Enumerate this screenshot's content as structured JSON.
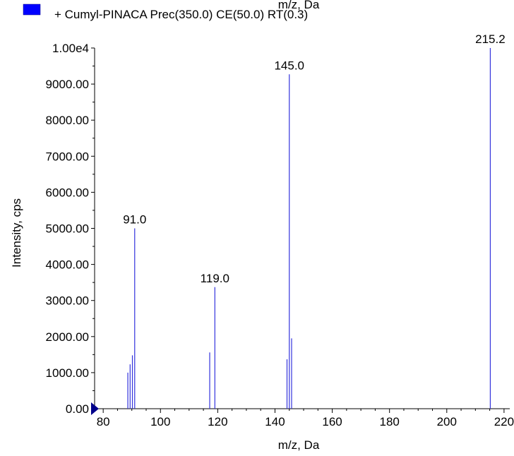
{
  "chart_data": {
    "type": "bar",
    "top_clipped_label": "m/z, Da",
    "legend": {
      "placement": "top-left",
      "items": [
        {
          "label": "+ Cumyl-PINACA Prec(350.0) CE(50.0) RT(0.3)",
          "color": "#0000ff"
        }
      ]
    },
    "xlabel": "m/z, Da",
    "ylabel": "Intensity, cps",
    "xlim": [
      77,
      222
    ],
    "ylim": [
      0,
      10000
    ],
    "x_ticks": [
      80,
      100,
      120,
      140,
      160,
      180,
      200,
      220
    ],
    "x_tick_labels": [
      "80",
      "100",
      "120",
      "140",
      "160",
      "180",
      "200",
      "220"
    ],
    "y_ticks": [
      0,
      1000,
      2000,
      3000,
      4000,
      5000,
      6000,
      7000,
      8000,
      9000,
      10000
    ],
    "y_tick_labels": [
      "0.00",
      "1000.00",
      "2000.00",
      "3000.00",
      "4000.00",
      "5000.00",
      "6000.00",
      "7000.00",
      "8000.00",
      "9000.00",
      "1.00e4"
    ],
    "peak_color": "#3333dd",
    "marker_color": "#00008b",
    "grid": false,
    "peaks": [
      {
        "x": 88.6,
        "y": 1000
      },
      {
        "x": 89.4,
        "y": 1230
      },
      {
        "x": 90.2,
        "y": 1480
      },
      {
        "x": 91.0,
        "y": 5000,
        "label": "91.0"
      },
      {
        "x": 117.2,
        "y": 1560
      },
      {
        "x": 119.0,
        "y": 3370,
        "label": "119.0"
      },
      {
        "x": 144.2,
        "y": 1370
      },
      {
        "x": 145.0,
        "y": 9270,
        "label": "145.0"
      },
      {
        "x": 145.8,
        "y": 1950
      },
      {
        "x": 215.2,
        "y": 10000,
        "label": "215.2"
      }
    ]
  }
}
